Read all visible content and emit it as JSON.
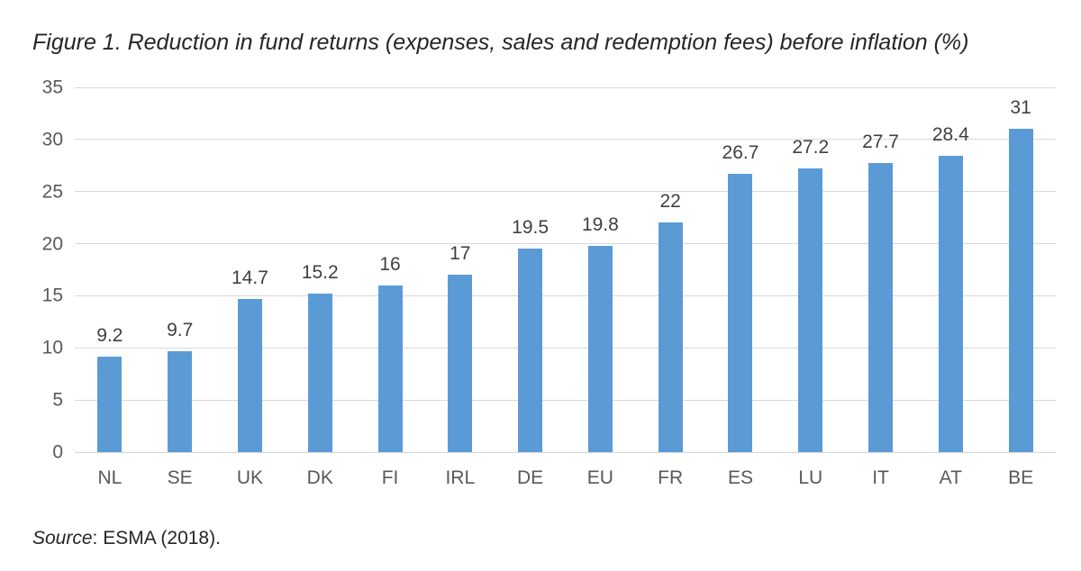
{
  "chart_data": {
    "type": "bar",
    "title": "Figure 1. Reduction in fund returns (expenses, sales and redemption fees) before inflation (%)",
    "categories": [
      "NL",
      "SE",
      "UK",
      "DK",
      "FI",
      "IRL",
      "DE",
      "EU",
      "FR",
      "ES",
      "LU",
      "IT",
      "AT",
      "BE"
    ],
    "values": [
      9.2,
      9.7,
      14.7,
      15.2,
      16,
      17,
      19.5,
      19.8,
      22,
      26.7,
      27.2,
      27.7,
      28.4,
      31
    ],
    "value_labels": [
      "9.2",
      "9.7",
      "14.7",
      "15.2",
      "16",
      "17",
      "19.5",
      "19.8",
      "22",
      "26.7",
      "27.2",
      "27.7",
      "28.4",
      "31"
    ],
    "xlabel": "",
    "ylabel": "",
    "ylim": [
      0,
      35
    ],
    "yticks": [
      0,
      5,
      10,
      15,
      20,
      25,
      30,
      35
    ],
    "grid": true,
    "legend": "none"
  },
  "source": {
    "prefix": "Source",
    "text": ": ESMA (2018)."
  },
  "colors": {
    "bar": "#5B9BD5",
    "gridline": "#D9D9D9",
    "axis_line": "#D6D6D6",
    "axis_label_text": "#595959",
    "value_label_text": "#404040",
    "title_text": "#262626",
    "background": "#FFFFFF"
  }
}
